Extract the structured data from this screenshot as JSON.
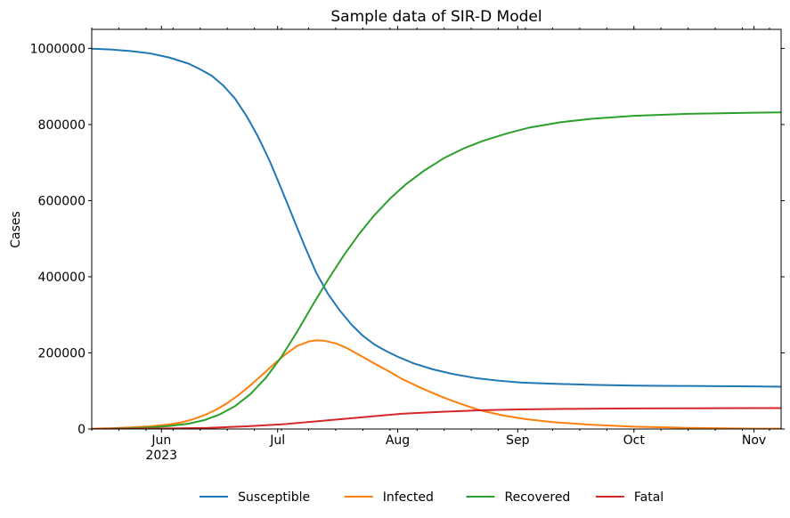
{
  "chart_data": {
    "type": "line",
    "title": "Sample data of SIR-D Model",
    "xlabel": "",
    "ylabel": "Cases",
    "x_axis_type": "date",
    "xlim": [
      "2023-05-14",
      "2023-11-08"
    ],
    "ylim": [
      0,
      1050000
    ],
    "x_ticks": [
      {
        "date": "2023-06-01",
        "label": "Jun",
        "sublabel": "2023"
      },
      {
        "date": "2023-07-01",
        "label": "Jul",
        "sublabel": ""
      },
      {
        "date": "2023-08-01",
        "label": "Aug",
        "sublabel": ""
      },
      {
        "date": "2023-09-01",
        "label": "Sep",
        "sublabel": ""
      },
      {
        "date": "2023-10-01",
        "label": "Oct",
        "sublabel": ""
      },
      {
        "date": "2023-11-01",
        "label": "Nov",
        "sublabel": ""
      }
    ],
    "y_ticks": [
      {
        "value": 0,
        "label": "0"
      },
      {
        "value": 200000,
        "label": "200000"
      },
      {
        "value": 400000,
        "label": "400000"
      },
      {
        "value": 600000,
        "label": "600000"
      },
      {
        "value": 800000,
        "label": "800000"
      },
      {
        "value": 1000000,
        "label": "1000000"
      }
    ],
    "grid": false,
    "legend_position": "bottom-center",
    "series": [
      {
        "name": "Susceptible",
        "color": "#1f77b4",
        "points": [
          [
            "2023-05-14",
            999000
          ],
          [
            "2023-05-19",
            997000
          ],
          [
            "2023-05-24",
            993000
          ],
          [
            "2023-05-29",
            987000
          ],
          [
            "2023-06-03",
            976000
          ],
          [
            "2023-06-08",
            960000
          ],
          [
            "2023-06-11",
            945000
          ],
          [
            "2023-06-14",
            928000
          ],
          [
            "2023-06-17",
            902000
          ],
          [
            "2023-06-20",
            868000
          ],
          [
            "2023-06-23",
            822000
          ],
          [
            "2023-06-26",
            767000
          ],
          [
            "2023-06-29",
            703000
          ],
          [
            "2023-07-02",
            630000
          ],
          [
            "2023-07-05",
            555000
          ],
          [
            "2023-07-08",
            480000
          ],
          [
            "2023-07-11",
            410000
          ],
          [
            "2023-07-14",
            355000
          ],
          [
            "2023-07-17",
            312000
          ],
          [
            "2023-07-20",
            275000
          ],
          [
            "2023-07-23",
            245000
          ],
          [
            "2023-07-26",
            222000
          ],
          [
            "2023-07-29",
            205000
          ],
          [
            "2023-08-01",
            190000
          ],
          [
            "2023-08-05",
            173000
          ],
          [
            "2023-08-10",
            157000
          ],
          [
            "2023-08-15",
            145000
          ],
          [
            "2023-08-21",
            134000
          ],
          [
            "2023-08-27",
            127000
          ],
          [
            "2023-09-02",
            122000
          ],
          [
            "2023-09-10",
            119000
          ],
          [
            "2023-09-20",
            116000
          ],
          [
            "2023-10-01",
            114000
          ],
          [
            "2023-10-15",
            113000
          ],
          [
            "2023-11-01",
            112000
          ],
          [
            "2023-11-08",
            111000
          ]
        ]
      },
      {
        "name": "Infected",
        "color": "#ff7f0e",
        "points": [
          [
            "2023-05-14",
            1000
          ],
          [
            "2023-05-19",
            2000
          ],
          [
            "2023-05-24",
            4000
          ],
          [
            "2023-05-29",
            7000
          ],
          [
            "2023-06-03",
            12000
          ],
          [
            "2023-06-06",
            17000
          ],
          [
            "2023-06-09",
            25000
          ],
          [
            "2023-06-12",
            36000
          ],
          [
            "2023-06-15",
            50000
          ],
          [
            "2023-06-18",
            68000
          ],
          [
            "2023-06-21",
            90000
          ],
          [
            "2023-06-24",
            115000
          ],
          [
            "2023-06-27",
            142000
          ],
          [
            "2023-06-30",
            170000
          ],
          [
            "2023-07-03",
            196000
          ],
          [
            "2023-07-06",
            218000
          ],
          [
            "2023-07-09",
            230000
          ],
          [
            "2023-07-11",
            233000
          ],
          [
            "2023-07-13",
            232000
          ],
          [
            "2023-07-16",
            225000
          ],
          [
            "2023-07-19",
            212000
          ],
          [
            "2023-07-22",
            195000
          ],
          [
            "2023-07-26",
            172000
          ],
          [
            "2023-07-30",
            150000
          ],
          [
            "2023-08-02",
            132000
          ],
          [
            "2023-08-07",
            108000
          ],
          [
            "2023-08-12",
            86000
          ],
          [
            "2023-08-17",
            67000
          ],
          [
            "2023-08-22",
            50000
          ],
          [
            "2023-08-28",
            36000
          ],
          [
            "2023-09-03",
            26000
          ],
          [
            "2023-09-10",
            18000
          ],
          [
            "2023-09-20",
            11000
          ],
          [
            "2023-10-01",
            6000
          ],
          [
            "2023-10-15",
            3000
          ],
          [
            "2023-11-01",
            1000
          ],
          [
            "2023-11-08",
            1000
          ]
        ]
      },
      {
        "name": "Recovered",
        "color": "#2ca02c",
        "points": [
          [
            "2023-05-14",
            0
          ],
          [
            "2023-05-19",
            1000
          ],
          [
            "2023-05-24",
            2000
          ],
          [
            "2023-05-29",
            4000
          ],
          [
            "2023-06-03",
            8000
          ],
          [
            "2023-06-08",
            14000
          ],
          [
            "2023-06-12",
            23000
          ],
          [
            "2023-06-16",
            38000
          ],
          [
            "2023-06-20",
            60000
          ],
          [
            "2023-06-24",
            92000
          ],
          [
            "2023-06-28",
            135000
          ],
          [
            "2023-07-02",
            190000
          ],
          [
            "2023-07-06",
            255000
          ],
          [
            "2023-07-10",
            325000
          ],
          [
            "2023-07-14",
            392000
          ],
          [
            "2023-07-18",
            455000
          ],
          [
            "2023-07-22",
            512000
          ],
          [
            "2023-07-26",
            562000
          ],
          [
            "2023-07-30",
            605000
          ],
          [
            "2023-08-03",
            642000
          ],
          [
            "2023-08-08",
            680000
          ],
          [
            "2023-08-13",
            712000
          ],
          [
            "2023-08-18",
            737000
          ],
          [
            "2023-08-23",
            757000
          ],
          [
            "2023-08-29",
            776000
          ],
          [
            "2023-09-04",
            792000
          ],
          [
            "2023-09-12",
            806000
          ],
          [
            "2023-09-20",
            815000
          ],
          [
            "2023-10-01",
            823000
          ],
          [
            "2023-10-15",
            828000
          ],
          [
            "2023-11-01",
            831000
          ],
          [
            "2023-11-08",
            832000
          ]
        ]
      },
      {
        "name": "Fatal",
        "color": "#d62728",
        "points": [
          [
            "2023-05-14",
            0
          ],
          [
            "2023-05-24",
            500
          ],
          [
            "2023-06-03",
            1500
          ],
          [
            "2023-06-13",
            3000
          ],
          [
            "2023-06-23",
            7000
          ],
          [
            "2023-07-03",
            13000
          ],
          [
            "2023-07-13",
            22000
          ],
          [
            "2023-07-23",
            31000
          ],
          [
            "2023-08-02",
            40000
          ],
          [
            "2023-08-12",
            45000
          ],
          [
            "2023-08-22",
            49000
          ],
          [
            "2023-09-01",
            51500
          ],
          [
            "2023-09-15",
            53000
          ],
          [
            "2023-10-01",
            54000
          ],
          [
            "2023-10-15",
            54500
          ],
          [
            "2023-11-01",
            55000
          ],
          [
            "2023-11-08",
            55000
          ]
        ]
      }
    ]
  }
}
